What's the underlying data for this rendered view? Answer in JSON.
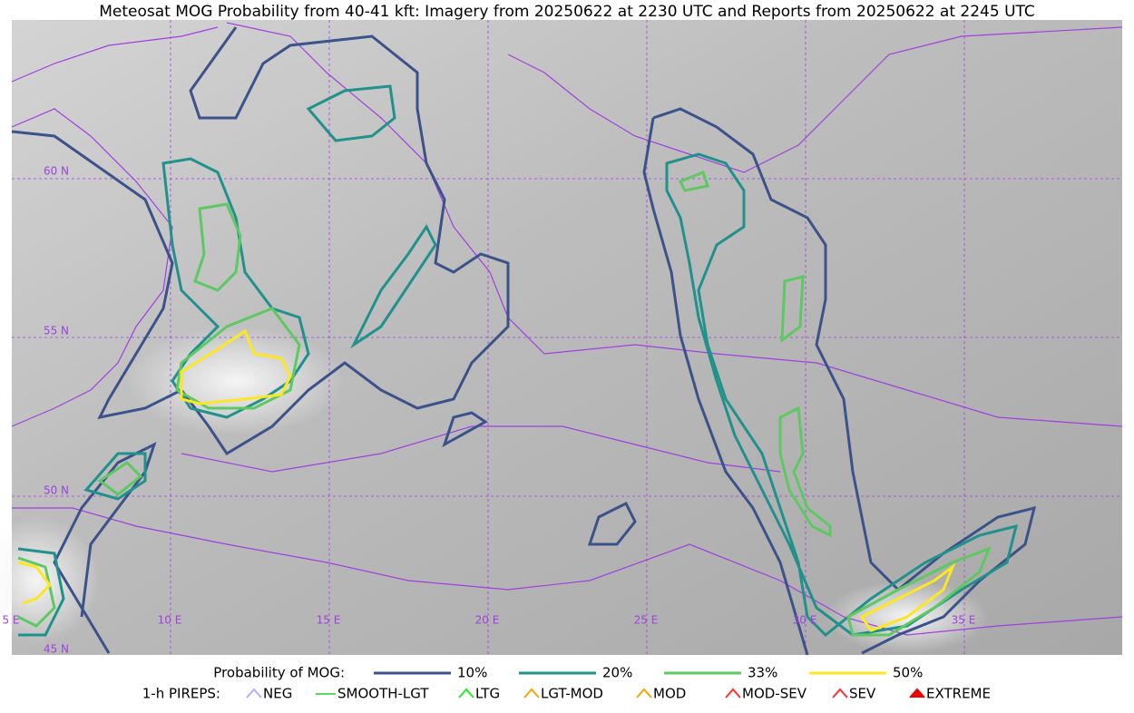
{
  "title": "Meteosat MOG Probability from 40-41 kft: Imagery from 20250622 at 2230 UTC and Reports from 20250622 at 2245 UTC",
  "map": {
    "lat_labels": [
      "60 N",
      "55 N",
      "50 N",
      "45 N"
    ],
    "lon_labels": [
      "5 E",
      "10 E",
      "15 E",
      "20 E",
      "25 E",
      "30 E",
      "35 E"
    ]
  },
  "legend": {
    "probability_title": "Probability of MOG:",
    "probability_levels": [
      "10%",
      "20%",
      "33%",
      "50%"
    ],
    "pireps_title": "1-h PIREPS:",
    "pireps": [
      "NEG",
      "SMOOTH-LGT",
      "LTG",
      "LGT-MOD",
      "MOD",
      "MOD-SEV",
      "SEV",
      "EXTREME"
    ]
  }
}
